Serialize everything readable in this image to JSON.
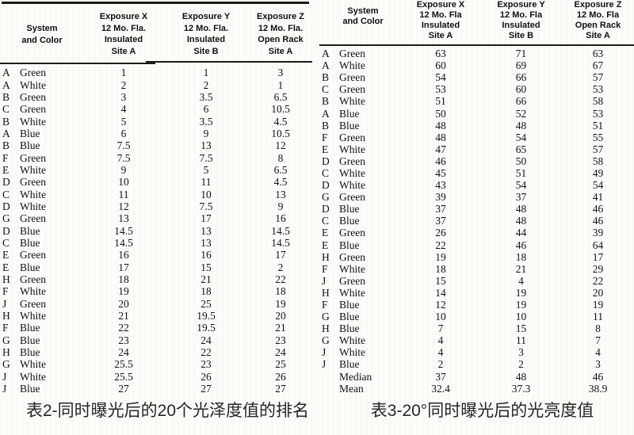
{
  "page": {
    "background": "#fcfcf9",
    "ink": "#161616"
  },
  "table2": {
    "caption": "表2-同时曝光后的20个光泽度值的排名",
    "header": {
      "system": [
        "System",
        "and Color"
      ],
      "x": [
        "Exposure X",
        "12 Mo. Fla.",
        "Insulated",
        "Site A"
      ],
      "y": [
        "Exposure Y",
        "12 Mo. Fla.",
        "Insulated",
        "Site B"
      ],
      "z": [
        "Exposure Z",
        "12 Mo. Fla.",
        "Open Rack",
        "Site A"
      ]
    },
    "rows": [
      [
        "A",
        "Green",
        "1",
        "1",
        "3"
      ],
      [
        "A",
        "White",
        "2",
        "2",
        "1"
      ],
      [
        "B",
        "Green",
        "3",
        "3.5",
        "6.5"
      ],
      [
        "C",
        "Green",
        "4",
        "6",
        "10.5"
      ],
      [
        "B",
        "White",
        "5",
        "3.5",
        "4.5"
      ],
      [
        "A",
        "Blue",
        "6",
        "9",
        "10.5"
      ],
      [
        "B",
        "Blue",
        "7.5",
        "13",
        "12"
      ],
      [
        "F",
        "Green",
        "7.5",
        "7.5",
        "8"
      ],
      [
        "E",
        "White",
        "9",
        "5",
        "6.5"
      ],
      [
        "D",
        "Green",
        "10",
        "11",
        "4.5"
      ],
      [
        "C",
        "White",
        "11",
        "10",
        "13"
      ],
      [
        "D",
        "White",
        "12",
        "7.5",
        "9"
      ],
      [
        "G",
        "Green",
        "13",
        "17",
        "16"
      ],
      [
        "D",
        "Blue",
        "14.5",
        "13",
        "14.5"
      ],
      [
        "C",
        "Blue",
        "14.5",
        "13",
        "14.5"
      ],
      [
        "E",
        "Green",
        "16",
        "16",
        "17"
      ],
      [
        "E",
        "Blue",
        "17",
        "15",
        "2"
      ],
      [
        "H",
        "Green",
        "18",
        "21",
        "22"
      ],
      [
        "F",
        "White",
        "19",
        "18",
        "18"
      ],
      [
        "J",
        "Green",
        "20",
        "25",
        "19"
      ],
      [
        "H",
        "White",
        "21",
        "19.5",
        "20"
      ],
      [
        "F",
        "Blue",
        "22",
        "19.5",
        "21"
      ],
      [
        "G",
        "Blue",
        "23",
        "24",
        "23"
      ],
      [
        "H",
        "Blue",
        "24",
        "22",
        "24"
      ],
      [
        "G",
        "White",
        "25.5",
        "23",
        "25"
      ],
      [
        "J",
        "White",
        "25.5",
        "26",
        "26"
      ],
      [
        "J",
        "Blue",
        "27",
        "27",
        "27"
      ]
    ]
  },
  "table3": {
    "caption": "表3-20°同时曝光后的光亮度值",
    "header": {
      "system": [
        "System",
        "and Color"
      ],
      "x": [
        "Exposure X",
        "12 Mo. Fla",
        "Insulated",
        "Site A"
      ],
      "y": [
        "Exposure Y",
        "12 Mo. Fla",
        "Insulated",
        "Site B"
      ],
      "z": [
        "Exposure Z",
        "12 Mo. Fla",
        "Open Rack",
        "Site A"
      ]
    },
    "rows": [
      [
        "A",
        "Green",
        "63",
        "71",
        "63"
      ],
      [
        "A",
        "White",
        "60",
        "69",
        "67"
      ],
      [
        "B",
        "Green",
        "54",
        "66",
        "57"
      ],
      [
        "C",
        "Green",
        "53",
        "60",
        "53"
      ],
      [
        "B",
        "White",
        "51",
        "66",
        "58"
      ],
      [
        "A",
        "Blue",
        "50",
        "52",
        "53"
      ],
      [
        "B",
        "Blue",
        "48",
        "48",
        "51"
      ],
      [
        "F",
        "Green",
        "48",
        "54",
        "55"
      ],
      [
        "E",
        "White",
        "47",
        "65",
        "57"
      ],
      [
        "D",
        "Green",
        "46",
        "50",
        "58"
      ],
      [
        "C",
        "White",
        "45",
        "51",
        "49"
      ],
      [
        "D",
        "White",
        "43",
        "54",
        "54"
      ],
      [
        "G",
        "Green",
        "39",
        "37",
        "41"
      ],
      [
        "D",
        "Blue",
        "37",
        "48",
        "46"
      ],
      [
        "C",
        "Blue",
        "37",
        "48",
        "46"
      ],
      [
        "E",
        "Green",
        "26",
        "44",
        "39"
      ],
      [
        "E",
        "Blue",
        "22",
        "46",
        "64"
      ],
      [
        "H",
        "Green",
        "19",
        "18",
        "17"
      ],
      [
        "F",
        "White",
        "18",
        "21",
        "29"
      ],
      [
        "J",
        "Green",
        "15",
        "4",
        "22"
      ],
      [
        "H",
        "White",
        "14",
        "19",
        "20"
      ],
      [
        "F",
        "Blue",
        "12",
        "19",
        "19"
      ],
      [
        "G",
        "Blue",
        "10",
        "10",
        "11"
      ],
      [
        "H",
        "Blue",
        "7",
        "15",
        "8"
      ],
      [
        "G",
        "White",
        "4",
        "11",
        "7"
      ],
      [
        "J",
        "White",
        "4",
        "3",
        "4"
      ],
      [
        "J",
        "Blue",
        "2",
        "2",
        "3"
      ],
      [
        "",
        "Median",
        "37",
        "48",
        "46"
      ],
      [
        "",
        "Mean",
        "32.4",
        "37.3",
        "38.9"
      ]
    ]
  }
}
